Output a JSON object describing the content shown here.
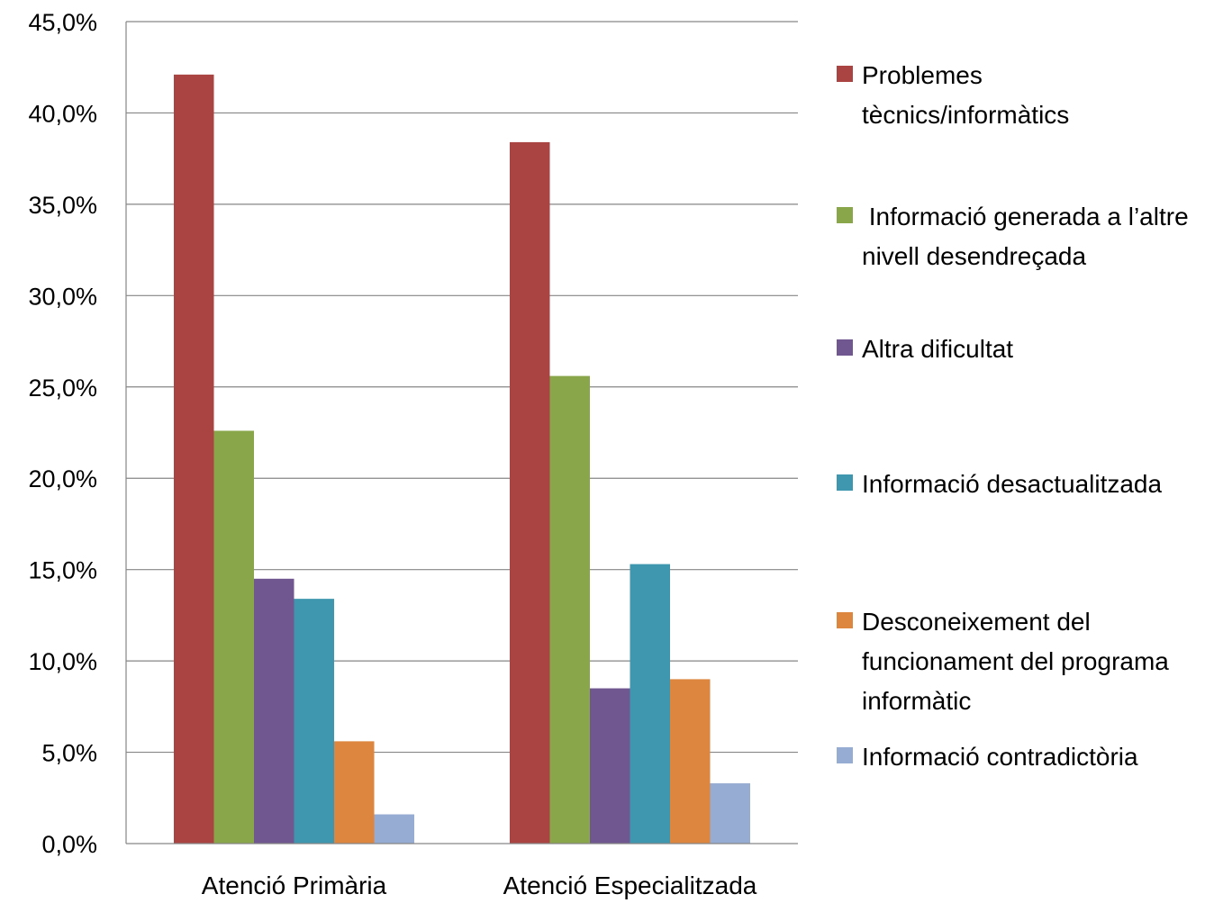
{
  "chart_data": {
    "type": "bar",
    "title": "",
    "xlabel": "",
    "ylabel": "",
    "ylim": [
      0,
      45
    ],
    "y_ticks": [
      0,
      5,
      10,
      15,
      20,
      25,
      30,
      35,
      40,
      45
    ],
    "y_tick_labels": [
      "0,0%",
      "5,0%",
      "10,0%",
      "15,0%",
      "20,0%",
      "25,0%",
      "30,0%",
      "35,0%",
      "40,0%",
      "45,0%"
    ],
    "grid": true,
    "legend_position": "right",
    "categories": [
      "Atenció Primària",
      "Atenció Especialitzada"
    ],
    "series": [
      {
        "name": "Problemes tècnics/informàtics",
        "legend_lines": [
          "Problemes",
          "tècnics/informàtics"
        ],
        "color": "#a94442",
        "values": [
          42.1,
          38.4
        ]
      },
      {
        "name": " Informació generada a l’altre nivell desendreçada",
        "legend_lines": [
          " Informació generada a l’altre",
          "nivell desendreçada"
        ],
        "color": "#8aa64b",
        "values": [
          22.6,
          25.6
        ]
      },
      {
        "name": "Altra dificultat",
        "legend_lines": [
          "Altra dificultat"
        ],
        "color": "#70578f",
        "values": [
          14.5,
          8.5
        ]
      },
      {
        "name": "Informació desactualitzada",
        "legend_lines": [
          "Informació desactualitzada"
        ],
        "color": "#3e97ae",
        "values": [
          13.4,
          15.3
        ]
      },
      {
        "name": "Desconeixement del funcionament del programa informàtic",
        "legend_lines": [
          "Desconeixement del",
          "funcionament del programa",
          "informàtic"
        ],
        "color": "#dd8640",
        "values": [
          5.6,
          9.0
        ]
      },
      {
        "name": "Informació contradictòria",
        "legend_lines": [
          "Informació contradictòria"
        ],
        "color": "#97acd2",
        "values": [
          1.6,
          3.3
        ]
      }
    ]
  }
}
